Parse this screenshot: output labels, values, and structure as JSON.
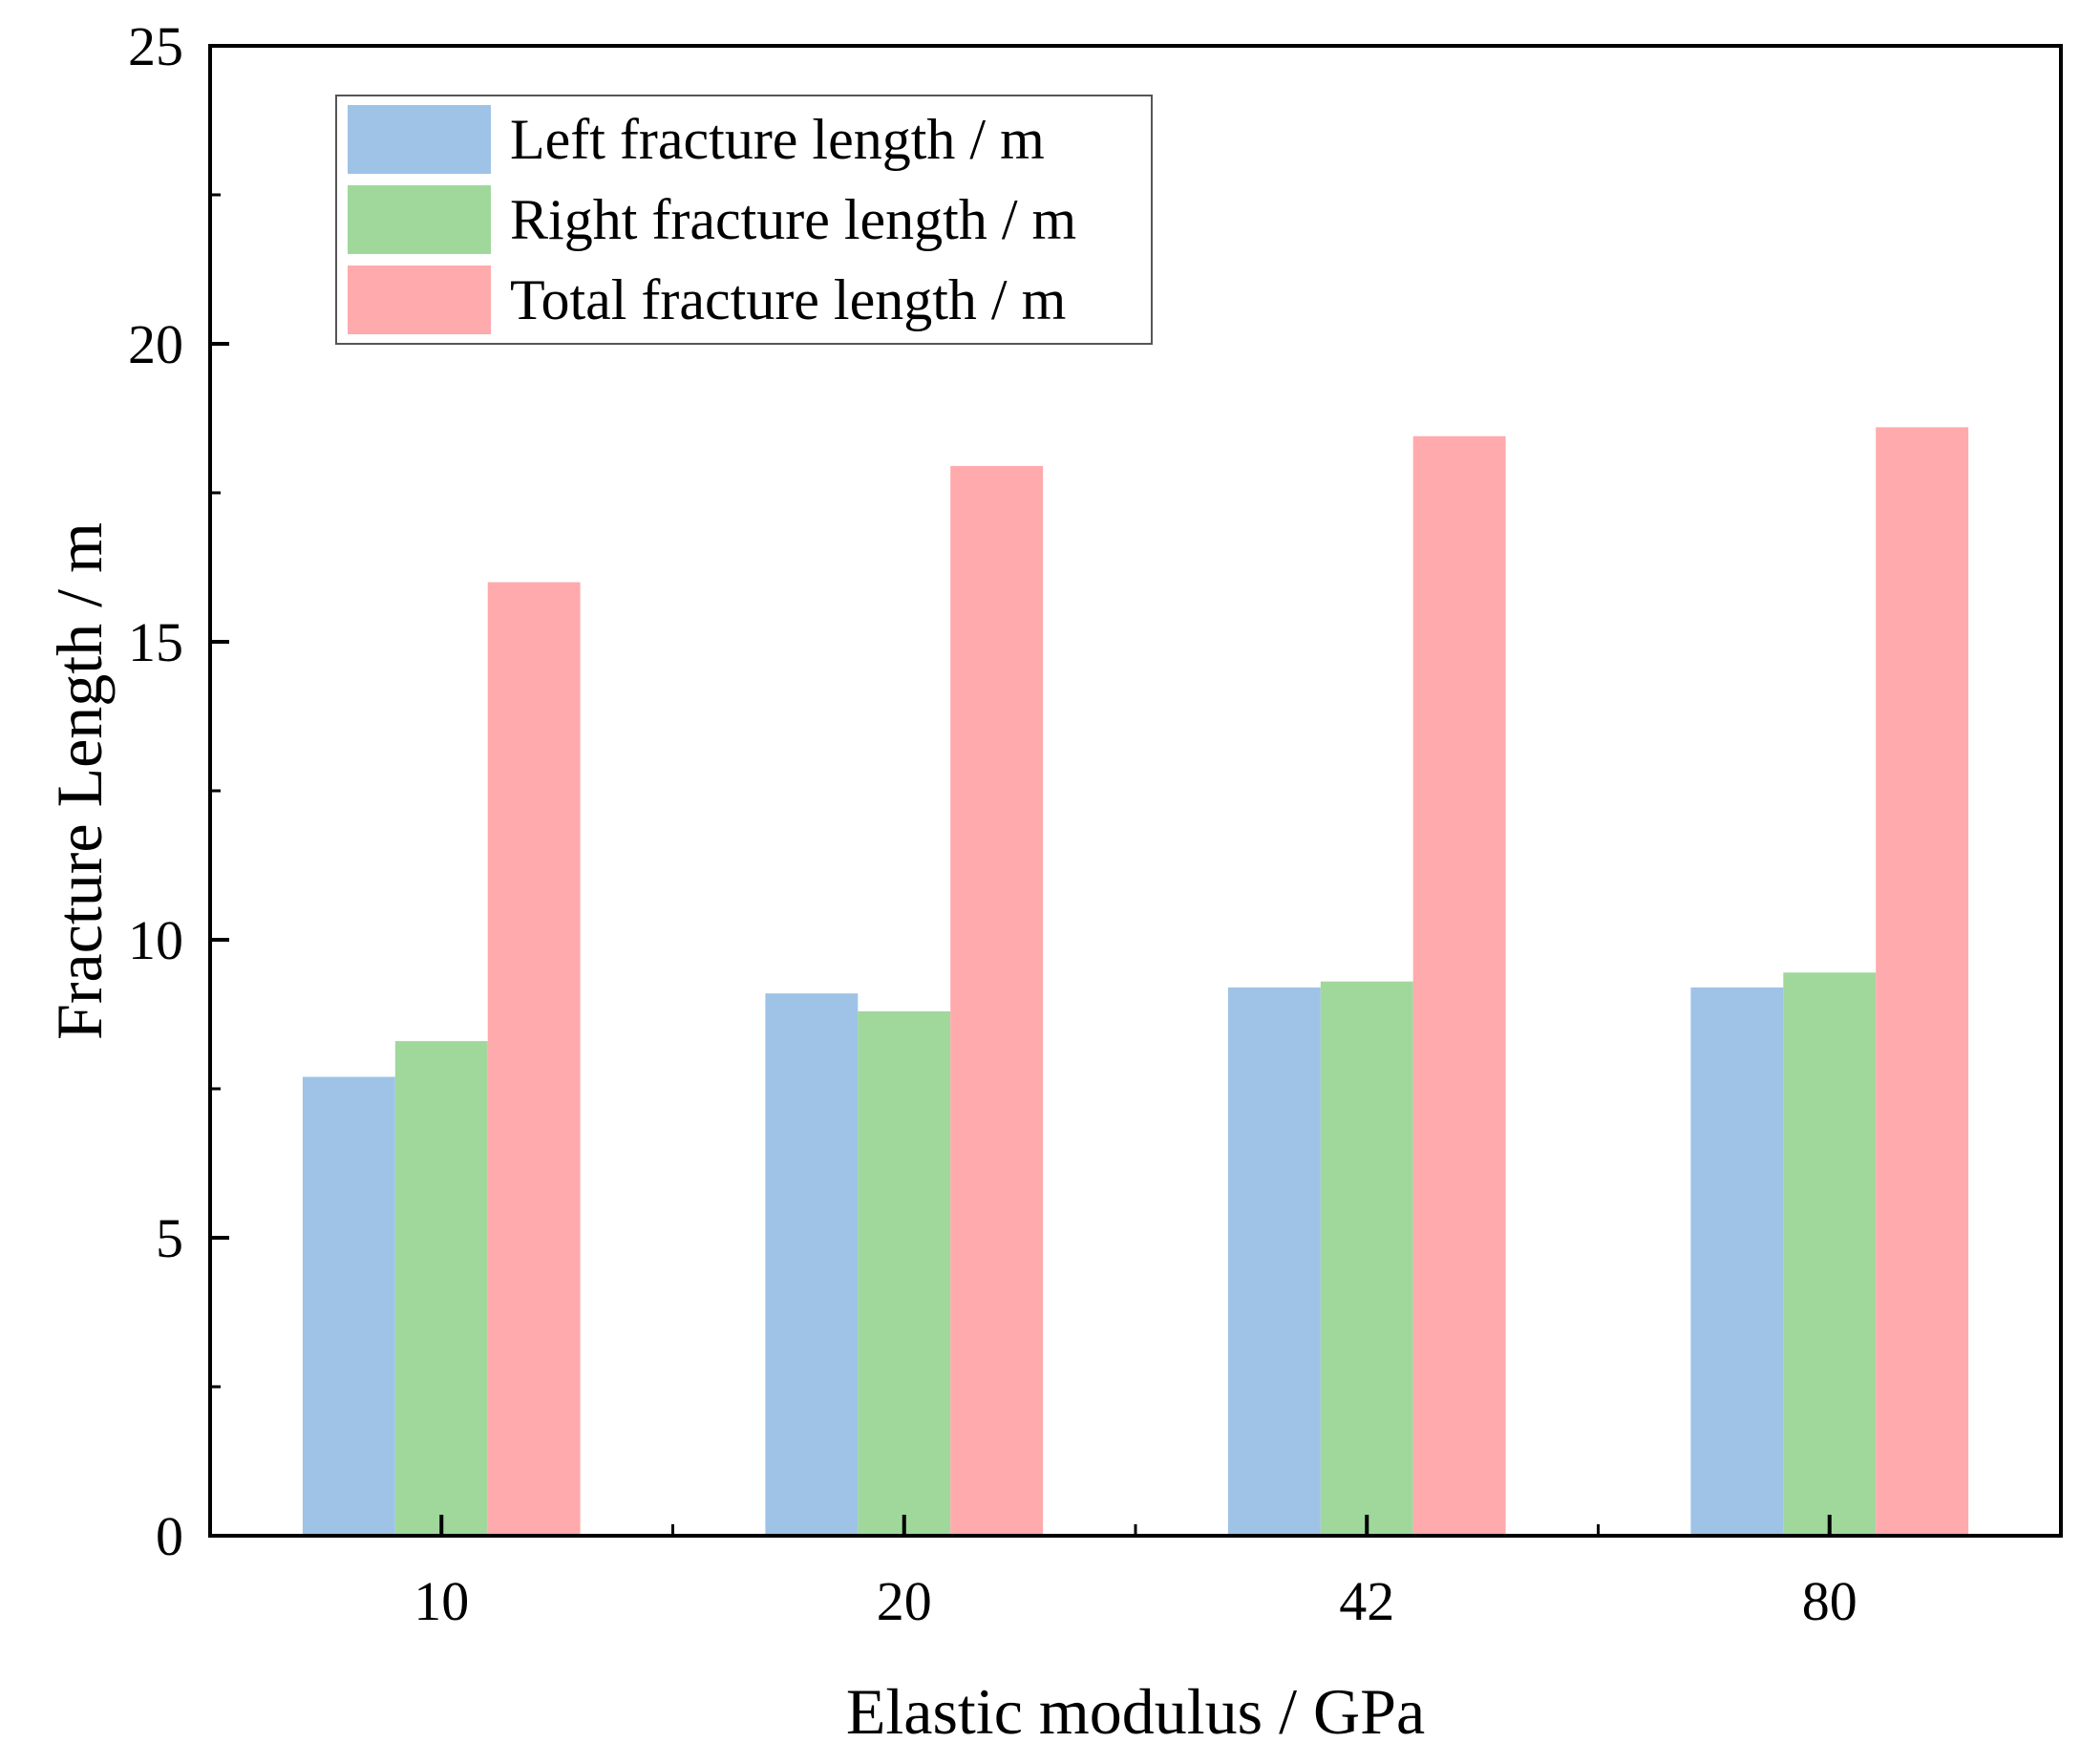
{
  "chart_data": {
    "type": "bar",
    "title": "",
    "xlabel": "Elastic modulus / GPa",
    "ylabel": "Fracture Length / m",
    "categories": [
      "10",
      "20",
      "42",
      "80"
    ],
    "series": [
      {
        "name": "Left fracture length / m",
        "color": "#9fc3e7",
        "values": [
          7.7,
          9.1,
          9.2,
          9.2
        ]
      },
      {
        "name": "Right fracture length / m",
        "color": "#a0d89c",
        "values": [
          8.3,
          8.8,
          9.3,
          9.45
        ]
      },
      {
        "name": "Total fracture length / m",
        "color": "#ffaaad",
        "values": [
          16.0,
          17.95,
          18.45,
          18.6
        ]
      }
    ],
    "ylim": [
      0,
      25
    ],
    "yticks": [
      "0",
      "5",
      "10",
      "15",
      "20",
      "25"
    ],
    "legend_position": "top-left",
    "grid": false
  }
}
